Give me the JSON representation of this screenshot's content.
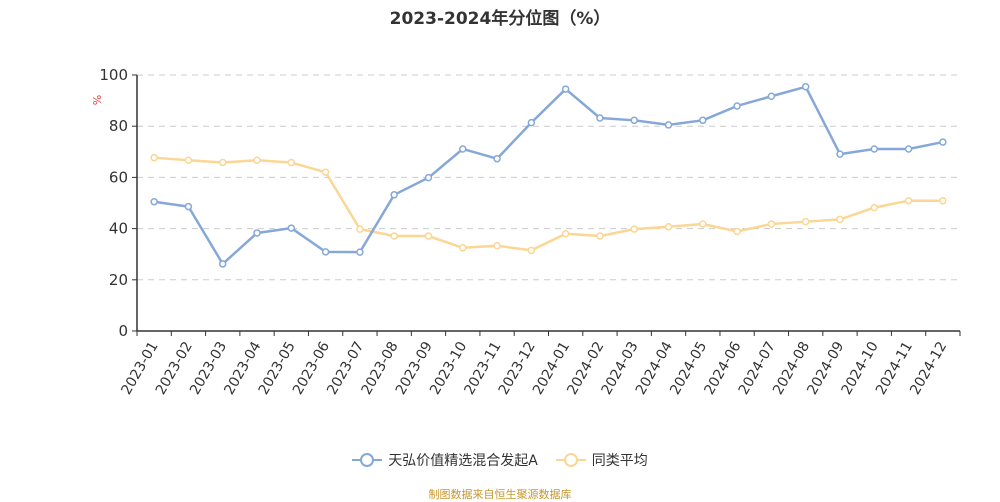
{
  "title": "2023-2024年分位图（%）",
  "source_note": "制图数据来自恒生聚源数据库",
  "colors": {
    "series1": "#86a8d8",
    "series2": "#fbd694",
    "axis": "#333333",
    "grid": "#cccccc",
    "unit_label": "#e8413c"
  },
  "legend": [
    {
      "label": "天弘价值精选混合发起A",
      "color": "#86a8d8"
    },
    {
      "label": "同类平均",
      "color": "#fbd694"
    }
  ],
  "chart_data": {
    "type": "line",
    "title": "2023-2024年分位图（%）",
    "xlabel": "",
    "ylabel": "%",
    "ylim": [
      0,
      100
    ],
    "yticks": [
      0,
      20,
      40,
      60,
      80,
      100
    ],
    "grid": true,
    "legend_position": "bottom",
    "categories": [
      "2023-01",
      "2023-02",
      "2023-03",
      "2023-04",
      "2023-05",
      "2023-06",
      "2023-07",
      "2023-08",
      "2023-09",
      "2023-10",
      "2023-11",
      "2023-12",
      "2024-01",
      "2024-02",
      "2024-03",
      "2024-04",
      "2024-05",
      "2024-06",
      "2024-07",
      "2024-08",
      "2024-09",
      "2024-10",
      "2024-11",
      "2024-12"
    ],
    "series": [
      {
        "name": "天弘价值精选混合发起A",
        "values": [
          50.5,
          48.6,
          26.2,
          38.3,
          40.2,
          30.9,
          30.8,
          53.2,
          59.9,
          71.1,
          67.3,
          81.4,
          94.5,
          83.2,
          82.3,
          80.5,
          82.3,
          87.9,
          91.7,
          95.4,
          69.1,
          71.1,
          71.1,
          73.8
        ]
      },
      {
        "name": "同类平均",
        "values": [
          67.7,
          66.7,
          65.8,
          66.7,
          65.8,
          62.0,
          39.8,
          37.1,
          37.1,
          32.5,
          33.3,
          31.5,
          38.0,
          37.1,
          39.8,
          40.7,
          41.8,
          38.9,
          41.8,
          42.7,
          43.6,
          48.2,
          50.9,
          50.9
        ]
      }
    ]
  }
}
